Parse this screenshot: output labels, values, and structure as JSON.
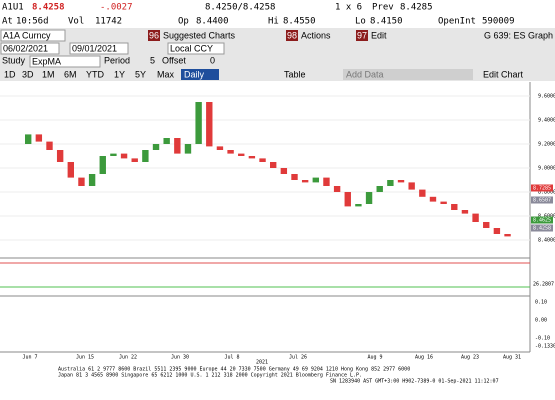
{
  "header": {
    "ticker": "A1U1",
    "last": "8.4258",
    "change": "-.0027",
    "bid_ask": "8.4250/8.4258",
    "size": "1 x 6",
    "prev_label": "Prev",
    "prev": "8.4285",
    "at_label": "At",
    "time": "10:56d",
    "vol_label": "Vol",
    "vol": "11742",
    "op_label": "Op",
    "op": "8.4400",
    "hi_label": "Hi",
    "hi": "8.4550",
    "lo_label": "Lo",
    "lo": "8.4150",
    "openint_label": "OpenInt",
    "openint": "590009"
  },
  "toolbar": {
    "security": "A1A Curncy",
    "suggested_key": "96",
    "suggested": "Suggested Charts",
    "actions_key": "98",
    "actions": "Actions",
    "edit_key": "97",
    "edit": "Edit",
    "graph": "G 639: ES Graph",
    "start": "06/02/2021",
    "end": "09/01/2021",
    "currency": "Local CCY",
    "study_label": "Study",
    "study": "ExpMA",
    "period_label": "Period",
    "period": "5",
    "offset_label": "Offset",
    "offset": "0",
    "ranges": [
      "1D",
      "3D",
      "1M",
      "6M",
      "YTD",
      "1Y",
      "5Y",
      "Max"
    ],
    "frequency": "Daily",
    "table": "Table",
    "add_data": "Add Data",
    "edit_chart": "Edit Chart"
  },
  "chart": {
    "type": "candlestick",
    "ylim": [
      8.3,
      9.7
    ],
    "yticks": [
      {
        "value": 9.6,
        "label": "9.6000"
      },
      {
        "value": 9.4,
        "label": "9.4000"
      },
      {
        "value": 9.2,
        "label": "9.2000"
      },
      {
        "value": 9.0,
        "label": "9.0000"
      },
      {
        "value": 8.8,
        "label": "8.8000"
      },
      {
        "value": 8.6,
        "label": "8.6000"
      },
      {
        "value": 8.4,
        "label": "8.4000"
      }
    ],
    "open": [
      9.2,
      9.28,
      9.22,
      9.15,
      9.05,
      8.92,
      8.85,
      8.95,
      9.1,
      9.12,
      9.08,
      9.05,
      9.15,
      9.2,
      9.25,
      9.12,
      9.2,
      9.55,
      9.18,
      9.15,
      9.12,
      9.1,
      9.08,
      9.05,
      9.0,
      8.95,
      8.9,
      8.88,
      8.92,
      8.85,
      8.8,
      8.68,
      8.7,
      8.8,
      8.85,
      8.9,
      8.88,
      8.82,
      8.76,
      8.72,
      8.7,
      8.65,
      8.62,
      8.55,
      8.5,
      8.45
    ],
    "close": [
      9.28,
      9.22,
      9.15,
      9.05,
      8.92,
      8.85,
      8.95,
      9.1,
      9.12,
      9.08,
      9.05,
      9.15,
      9.2,
      9.25,
      9.12,
      9.2,
      9.55,
      9.18,
      9.15,
      9.12,
      9.1,
      9.08,
      9.05,
      9.0,
      8.95,
      8.9,
      8.88,
      8.92,
      8.85,
      8.8,
      8.68,
      8.7,
      8.8,
      8.85,
      8.9,
      8.88,
      8.82,
      8.76,
      8.72,
      8.7,
      8.65,
      8.62,
      8.55,
      8.5,
      8.45,
      8.43
    ],
    "up_color": "#3c9a3c",
    "down_color": "#e03a3a",
    "x_labels": [
      "Jun 7",
      "Jun 15",
      "Jun 22",
      "Jun 30",
      "Jul 8",
      "Jul 26",
      "Aug 9",
      "Aug 16",
      "Aug 23",
      "Aug 31"
    ],
    "year": "2021",
    "price_tags": [
      "8.7285",
      "8.6507",
      "8.4625",
      "8.4258"
    ],
    "panel2_label": "26.2807",
    "panel3_labels": [
      "0.10",
      "0.00",
      "-0.10",
      "-0.1330"
    ]
  },
  "footer": {
    "lines": [
      "Australia 61 2 9777 8600 Brazil 5511 2395 9000 Europe 44 20 7330 7500 Germany 49 69 9204 1210 Hong Kong 852 2977 6000",
      "Japan 81 3 4565 8900       Singapore 65 6212 1000       U.S. 1 212 318 2000       Copyright 2021 Bloomberg Finance L.P.",
      "SN 1283940 AST GMT+3:00 H902-7389-0 01-Sep-2021 11:12:07"
    ]
  }
}
